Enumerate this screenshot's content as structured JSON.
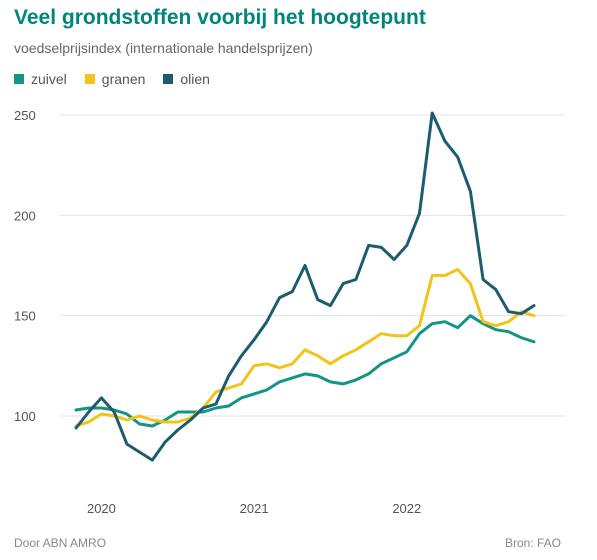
{
  "chart_data": {
    "type": "line",
    "title": "Veel grondstoffen voorbij het hoogtepunt",
    "subtitle": "voedselprijsindex (internationale handelsprijzen)",
    "xlabel": "",
    "ylabel": "",
    "x_ticks": [
      "2020",
      "2021",
      "2022"
    ],
    "y_ticks": [
      100,
      150,
      200,
      250
    ],
    "ylim": [
      70,
      260
    ],
    "grid": "horizontal",
    "legend_position": "top-left",
    "x": [
      "2019-11",
      "2019-12",
      "2020-01",
      "2020-02",
      "2020-03",
      "2020-04",
      "2020-05",
      "2020-06",
      "2020-07",
      "2020-08",
      "2020-09",
      "2020-10",
      "2020-11",
      "2020-12",
      "2021-01",
      "2021-02",
      "2021-03",
      "2021-04",
      "2021-05",
      "2021-06",
      "2021-07",
      "2021-08",
      "2021-09",
      "2021-10",
      "2021-11",
      "2021-12",
      "2022-01",
      "2022-02",
      "2022-03",
      "2022-04",
      "2022-05",
      "2022-06",
      "2022-07",
      "2022-08",
      "2022-09",
      "2022-10",
      "2022-11"
    ],
    "series": [
      {
        "name": "zuivel",
        "color": "#149486",
        "values": [
          103,
          104,
          104,
          103,
          101,
          96,
          95,
          98,
          102,
          102,
          102,
          104,
          105,
          109,
          111,
          113,
          117,
          119,
          121,
          120,
          117,
          116,
          118,
          121,
          126,
          129,
          132,
          141,
          146,
          147,
          144,
          150,
          146,
          143,
          142,
          139,
          137
        ]
      },
      {
        "name": "granen",
        "color": "#f0c419",
        "values": [
          95,
          97,
          101,
          100,
          98,
          100,
          98,
          97,
          97,
          99,
          104,
          112,
          114,
          116,
          125,
          126,
          124,
          126,
          133,
          130,
          126,
          130,
          133,
          137,
          141,
          140,
          140,
          145,
          170,
          170,
          173,
          166,
          147,
          145,
          147,
          152,
          150
        ]
      },
      {
        "name": "olien",
        "color": "#1c5c6e",
        "values": [
          94,
          102,
          109,
          102,
          86,
          82,
          78,
          87,
          93,
          98,
          104,
          106,
          120,
          130,
          138,
          147,
          159,
          162,
          175,
          158,
          155,
          166,
          168,
          185,
          184,
          178,
          185,
          201,
          251,
          237,
          229,
          212,
          168,
          163,
          152,
          151,
          155
        ]
      }
    ]
  },
  "footer": {
    "left": "Door ABN AMRO",
    "right": "Bron: FAO"
  }
}
